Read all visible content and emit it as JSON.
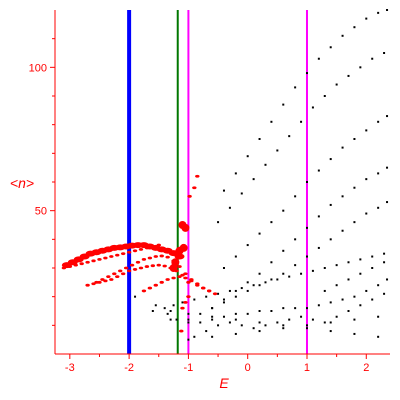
{
  "chart_data": {
    "type": "scatter",
    "title": "",
    "xlabel": "E",
    "ylabel": "<n>",
    "xlim": [
      -3.25,
      2.4
    ],
    "ylim": [
      0,
      120
    ],
    "x_ticks": [
      -3,
      -2,
      -1,
      0,
      1,
      2
    ],
    "x_tick_labels": [
      "-3",
      "-2",
      "-1",
      "0",
      "1",
      "2"
    ],
    "y_ticks": [
      50,
      100
    ],
    "y_tick_labels": [
      "50",
      "100"
    ],
    "grid": false,
    "colors": {
      "axes": "#ff0000",
      "black_points": "#000000",
      "red_points": "#ff0000",
      "line_blue": "#0000ff",
      "line_green": "#007700",
      "line_magenta": "#ff00ff"
    },
    "vertical_lines": [
      {
        "x": -2.0,
        "color": "#0000ff"
      },
      {
        "x": -1.18,
        "color": "#007700"
      },
      {
        "x": -1.0,
        "color": "#ff00ff"
      },
      {
        "x": 1.0,
        "color": "#ff00ff"
      }
    ],
    "black_series": [
      [
        [
          -1.4,
          16
        ],
        [
          -1.25,
          17
        ],
        [
          -1.1,
          18
        ],
        [
          -0.9,
          19
        ],
        [
          -0.7,
          20
        ],
        [
          -0.5,
          21
        ],
        [
          -0.3,
          22
        ],
        [
          -0.1,
          23
        ],
        [
          0.1,
          24
        ],
        [
          0.3,
          25
        ],
        [
          0.5,
          26
        ],
        [
          0.7,
          27
        ],
        [
          0.9,
          28
        ],
        [
          1.1,
          29
        ],
        [
          1.3,
          30
        ],
        [
          1.5,
          31
        ],
        [
          1.7,
          32
        ],
        [
          1.9,
          33
        ],
        [
          2.1,
          34
        ],
        [
          2.3,
          35
        ]
      ],
      [
        [
          -1.0,
          12
        ],
        [
          -0.8,
          14
        ],
        [
          -0.6,
          16
        ],
        [
          -0.4,
          18
        ],
        [
          -0.2,
          20
        ],
        [
          0.0,
          22
        ],
        [
          0.2,
          24
        ],
        [
          0.4,
          26
        ],
        [
          0.6,
          28
        ],
        [
          0.8,
          31
        ],
        [
          1.0,
          34
        ],
        [
          1.2,
          37
        ],
        [
          1.4,
          40
        ],
        [
          1.6,
          43
        ],
        [
          1.8,
          46
        ],
        [
          2.0,
          49
        ],
        [
          2.2,
          51
        ],
        [
          2.35,
          53
        ]
      ],
      [
        [
          -0.6,
          16
        ],
        [
          -0.4,
          19
        ],
        [
          -0.2,
          22
        ],
        [
          0.0,
          25
        ],
        [
          0.2,
          28
        ],
        [
          0.4,
          32
        ],
        [
          0.6,
          36
        ],
        [
          0.8,
          40
        ],
        [
          1.0,
          44
        ],
        [
          1.2,
          48
        ],
        [
          1.4,
          52
        ],
        [
          1.6,
          55
        ],
        [
          1.8,
          58
        ],
        [
          2.0,
          61
        ],
        [
          2.2,
          63
        ],
        [
          2.35,
          65
        ]
      ],
      [
        [
          -0.4,
          30
        ],
        [
          -0.2,
          34
        ],
        [
          0.0,
          38
        ],
        [
          0.2,
          42
        ],
        [
          0.4,
          46
        ],
        [
          0.6,
          50
        ],
        [
          0.8,
          55
        ],
        [
          1.0,
          60
        ],
        [
          1.2,
          64
        ],
        [
          1.4,
          68
        ],
        [
          1.6,
          72
        ],
        [
          1.8,
          75
        ],
        [
          2.0,
          78
        ],
        [
          2.2,
          81
        ],
        [
          2.35,
          83
        ]
      ],
      [
        [
          -0.5,
          46
        ],
        [
          -0.3,
          51
        ],
        [
          -0.1,
          56
        ],
        [
          0.1,
          61
        ],
        [
          0.3,
          66
        ],
        [
          0.5,
          71
        ],
        [
          0.7,
          76
        ],
        [
          0.9,
          81
        ],
        [
          1.1,
          86
        ],
        [
          1.3,
          90
        ],
        [
          1.5,
          94
        ],
        [
          1.7,
          97
        ],
        [
          1.9,
          100
        ],
        [
          2.1,
          103
        ],
        [
          2.3,
          105
        ]
      ],
      [
        [
          -0.4,
          57
        ],
        [
          -0.2,
          63
        ],
        [
          0.0,
          69
        ],
        [
          0.2,
          75
        ],
        [
          0.4,
          81
        ],
        [
          0.6,
          87
        ],
        [
          0.8,
          93
        ],
        [
          1.0,
          98
        ],
        [
          1.2,
          103
        ],
        [
          1.4,
          107
        ],
        [
          1.6,
          111
        ],
        [
          1.8,
          114
        ],
        [
          2.0,
          117
        ],
        [
          2.2,
          119
        ],
        [
          2.35,
          120
        ]
      ],
      [
        [
          -1.2,
          12
        ],
        [
          -1.0,
          11
        ],
        [
          -0.8,
          11
        ],
        [
          -0.6,
          12
        ],
        [
          -0.4,
          13
        ],
        [
          -0.2,
          14
        ],
        [
          0.0,
          14
        ],
        [
          0.2,
          15
        ],
        [
          0.4,
          15
        ],
        [
          0.6,
          16
        ],
        [
          0.8,
          16
        ],
        [
          1.0,
          16
        ],
        [
          1.2,
          17
        ],
        [
          1.4,
          18
        ],
        [
          1.6,
          19
        ],
        [
          1.8,
          20
        ],
        [
          2.0,
          22
        ],
        [
          2.2,
          24
        ],
        [
          2.35,
          26
        ]
      ],
      [
        [
          -0.9,
          6
        ],
        [
          -0.7,
          8
        ],
        [
          -0.5,
          10
        ],
        [
          -0.3,
          11
        ],
        [
          -0.1,
          10
        ],
        [
          0.1,
          9
        ],
        [
          0.3,
          10
        ],
        [
          0.5,
          11
        ],
        [
          0.7,
          12
        ],
        [
          0.9,
          13
        ],
        [
          1.1,
          12
        ],
        [
          1.3,
          11
        ],
        [
          1.5,
          13
        ],
        [
          1.7,
          15
        ],
        [
          1.9,
          17
        ],
        [
          2.1,
          19
        ],
        [
          2.3,
          21
        ]
      ],
      [
        [
          -1.3,
          15
        ],
        [
          -1.0,
          14
        ],
        [
          -0.6,
          13
        ],
        [
          -0.2,
          12
        ],
        [
          0.2,
          11
        ],
        [
          0.6,
          10
        ],
        [
          1.0,
          9
        ],
        [
          1.4,
          8
        ],
        [
          1.8,
          7
        ],
        [
          2.2,
          6
        ]
      ],
      [
        [
          -1.0,
          5
        ],
        [
          -0.6,
          6
        ],
        [
          -0.2,
          7
        ],
        [
          0.2,
          8
        ],
        [
          0.6,
          9
        ],
        [
          1.0,
          10
        ],
        [
          1.4,
          11
        ],
        [
          1.8,
          12
        ],
        [
          2.2,
          13
        ]
      ],
      [
        [
          1.3,
          22
        ],
        [
          1.5,
          24
        ],
        [
          1.7,
          26
        ],
        [
          1.9,
          28
        ],
        [
          2.1,
          30
        ],
        [
          2.3,
          32
        ]
      ],
      [
        [
          -1.9,
          20
        ],
        [
          -1.6,
          15
        ],
        [
          -1.3,
          12
        ],
        [
          -1.35,
          14
        ],
        [
          -1.55,
          17
        ]
      ]
    ],
    "red_series": [
      {
        "marker": "big",
        "points": [
          [
            -1.05,
            44
          ],
          [
            -1.1,
            45
          ],
          [
            -1.08,
            37
          ],
          [
            -1.15,
            36
          ],
          [
            -1.18,
            35
          ],
          [
            -1.22,
            32
          ],
          [
            -1.25,
            30
          ]
        ]
      },
      {
        "marker": "medium",
        "points": [
          [
            -3.05,
            31
          ],
          [
            -2.95,
            32
          ],
          [
            -2.85,
            33
          ],
          [
            -2.75,
            34
          ],
          [
            -2.65,
            35
          ],
          [
            -2.55,
            35.5
          ],
          [
            -2.45,
            36
          ],
          [
            -2.35,
            36.5
          ],
          [
            -2.25,
            37
          ],
          [
            -2.15,
            37.2
          ],
          [
            -2.05,
            37.5
          ],
          [
            -1.95,
            37.8
          ],
          [
            -1.85,
            38
          ],
          [
            -1.75,
            38
          ],
          [
            -1.65,
            37.5
          ],
          [
            -1.55,
            37
          ],
          [
            -1.45,
            36.5
          ],
          [
            -1.35,
            36
          ],
          [
            -1.25,
            35.2
          ],
          [
            -1.15,
            34
          ]
        ]
      },
      {
        "marker": "small",
        "points": [
          [
            -2.55,
            25
          ],
          [
            -2.45,
            26
          ],
          [
            -2.35,
            27
          ],
          [
            -2.25,
            28
          ],
          [
            -2.15,
            29
          ],
          [
            -2.05,
            30
          ],
          [
            -1.95,
            31
          ],
          [
            -1.85,
            32
          ],
          [
            -1.75,
            33
          ],
          [
            -1.65,
            33.5
          ],
          [
            -1.55,
            34
          ],
          [
            -1.45,
            34.2
          ],
          [
            -1.35,
            33.8
          ],
          [
            -1.25,
            32.5
          ],
          [
            -1.15,
            30.5
          ],
          [
            -1.05,
            28
          ],
          [
            -0.95,
            26
          ],
          [
            -0.85,
            24
          ],
          [
            -0.75,
            23
          ],
          [
            -0.65,
            22
          ]
        ]
      },
      {
        "marker": "small",
        "points": [
          [
            -2.7,
            24
          ],
          [
            -2.6,
            24.5
          ],
          [
            -2.5,
            25
          ],
          [
            -2.4,
            25.5
          ],
          [
            -2.3,
            26
          ],
          [
            -2.2,
            27
          ],
          [
            -2.1,
            28
          ],
          [
            -2.0,
            29
          ],
          [
            -1.9,
            29.5
          ],
          [
            -1.8,
            30
          ],
          [
            -1.7,
            30.5
          ],
          [
            -1.6,
            30.8
          ],
          [
            -1.5,
            31
          ],
          [
            -1.4,
            30.7
          ],
          [
            -1.3,
            30
          ],
          [
            -1.2,
            29
          ],
          [
            -1.1,
            27.5
          ],
          [
            -1.0,
            25
          ]
        ]
      },
      {
        "marker": "small",
        "points": [
          [
            -1.75,
            22
          ],
          [
            -1.65,
            23
          ],
          [
            -1.55,
            24
          ],
          [
            -1.45,
            25
          ],
          [
            -1.35,
            26
          ],
          [
            -1.25,
            26.5
          ],
          [
            -1.15,
            27
          ],
          [
            -1.05,
            26.5
          ],
          [
            -0.95,
            25.5
          ],
          [
            -0.85,
            24.5
          ],
          [
            -0.75,
            23
          ],
          [
            -0.65,
            22
          ],
          [
            -0.55,
            21
          ]
        ]
      },
      {
        "marker": "small",
        "points": [
          [
            -3.1,
            30
          ],
          [
            -3.0,
            30.5
          ],
          [
            -2.9,
            31
          ],
          [
            -2.8,
            31.5
          ],
          [
            -2.7,
            32
          ],
          [
            -2.6,
            32.5
          ],
          [
            -2.5,
            33
          ],
          [
            -2.4,
            33.5
          ],
          [
            -2.3,
            34
          ],
          [
            -2.2,
            34.5
          ],
          [
            -2.1,
            35
          ],
          [
            -2.0,
            35.5
          ],
          [
            -1.9,
            36
          ],
          [
            -1.8,
            36.5
          ],
          [
            -1.7,
            37
          ],
          [
            -1.6,
            37.5
          ],
          [
            -1.5,
            38
          ]
        ]
      },
      {
        "marker": "small",
        "points": [
          [
            -1.1,
            16
          ],
          [
            -1.05,
            18
          ],
          [
            -1.0,
            20
          ],
          [
            -0.98,
            55
          ],
          [
            -0.9,
            58
          ],
          [
            -0.85,
            62
          ],
          [
            -1.12,
            8
          ]
        ]
      }
    ]
  }
}
